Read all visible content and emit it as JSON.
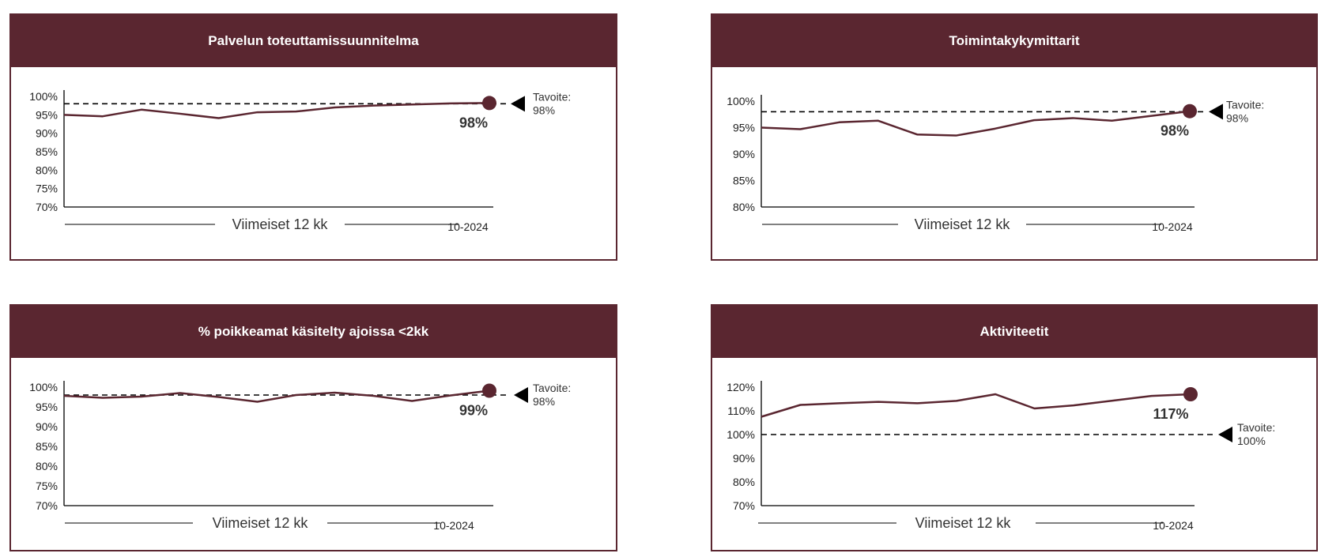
{
  "colors": {
    "header": "#5a2630",
    "line": "#5a2630",
    "marker": "#5a2630",
    "target": "#000000"
  },
  "chart_data": [
    {
      "type": "line",
      "title": "Palvelun toteuttamissuunnitelma",
      "ylim": [
        70,
        100
      ],
      "yticks": [
        70,
        75,
        80,
        85,
        90,
        95,
        100
      ],
      "ytick_suffix": "%",
      "values": [
        95.0,
        94.6,
        96.4,
        95.3,
        94.1,
        95.7,
        95.9,
        97.0,
        97.5,
        97.8,
        98.1,
        98.2
      ],
      "target": 98,
      "target_label_1": "Tavoite:",
      "target_label_2": "98%",
      "value_label": "98%",
      "period_label": "Viimeiset 12 kk",
      "date_label": "10-2024"
    },
    {
      "type": "line",
      "title": "Toimintakykymittarit",
      "ylim": [
        80,
        100
      ],
      "yticks": [
        80,
        85,
        90,
        95,
        100
      ],
      "ytick_suffix": "%",
      "values": [
        95.0,
        94.7,
        96.0,
        96.3,
        93.7,
        93.5,
        94.8,
        96.4,
        96.8,
        96.3,
        97.2,
        98.1
      ],
      "target": 98,
      "target_label_1": "Tavoite:",
      "target_label_2": "98%",
      "value_label": "98%",
      "period_label": "Viimeiset 12 kk",
      "date_label": "10-2024"
    },
    {
      "type": "line",
      "title": "% poikkeamat käsitelty ajoissa <2kk",
      "ylim": [
        70,
        100
      ],
      "yticks": [
        70,
        75,
        80,
        85,
        90,
        95,
        100
      ],
      "ytick_suffix": "%",
      "values": [
        97.8,
        97.3,
        97.6,
        98.5,
        97.5,
        96.3,
        98.0,
        98.6,
        97.8,
        96.5,
        97.9,
        99.1
      ],
      "target": 98,
      "target_label_1": "Tavoite:",
      "target_label_2": "98%",
      "value_label": "99%",
      "period_label": "Viimeiset 12 kk",
      "date_label": "10-2024"
    },
    {
      "type": "line",
      "title": "Aktiviteetit",
      "ylim": [
        70,
        120
      ],
      "yticks": [
        70,
        80,
        90,
        100,
        110,
        120
      ],
      "ytick_suffix": "%",
      "values": [
        107.5,
        112.5,
        113.2,
        113.8,
        113.2,
        114.2,
        117.0,
        111.0,
        112.3,
        114.3,
        116.3,
        117.0
      ],
      "target": 100,
      "target_label_1": "Tavoite:",
      "target_label_2": "100%",
      "value_label": "117%",
      "period_label": "Viimeiset 12 kk",
      "date_label": "10-2024"
    }
  ]
}
